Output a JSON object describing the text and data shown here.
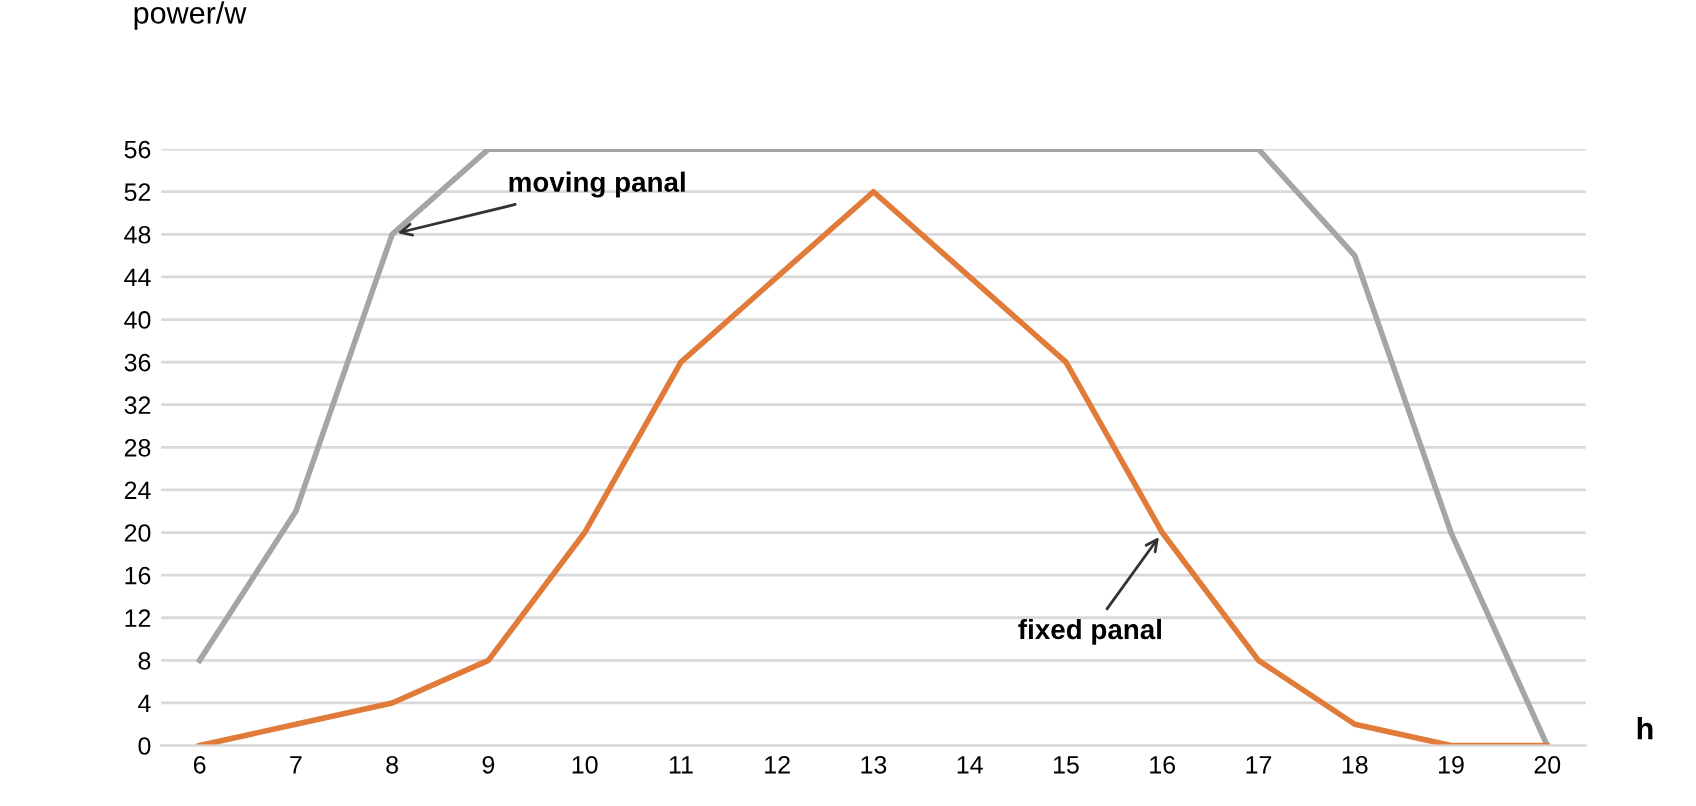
{
  "chart_data": {
    "type": "line",
    "xlabel": "h",
    "ylabel": "power/w",
    "categories": [
      "6",
      "7",
      "8",
      "9",
      "10",
      "11",
      "12",
      "13",
      "14",
      "15",
      "16",
      "17",
      "18",
      "19",
      "20"
    ],
    "series": [
      {
        "color": "#a5a5a5",
        "values": [
          8,
          22,
          48,
          56,
          56,
          56,
          56,
          56,
          56,
          56,
          56,
          56,
          46,
          20,
          0
        ]
      },
      {
        "color": "#e07b39",
        "values": [
          0,
          2,
          4,
          8,
          20,
          36,
          44,
          52,
          44,
          36,
          20,
          8,
          2,
          0,
          0
        ]
      }
    ],
    "ylim": [
      0,
      56
    ],
    "yticks": [
      0,
      4,
      8,
      12,
      16,
      20,
      24,
      28,
      32,
      36,
      40,
      44,
      48,
      52,
      56
    ],
    "grid": "y",
    "marker": "none",
    "line_style": "solid",
    "annotations": [
      {
        "text": "moving panal",
        "x": "8",
        "y": 48
      },
      {
        "text": "fixed panal",
        "x": "16",
        "y": 20
      }
    ]
  }
}
